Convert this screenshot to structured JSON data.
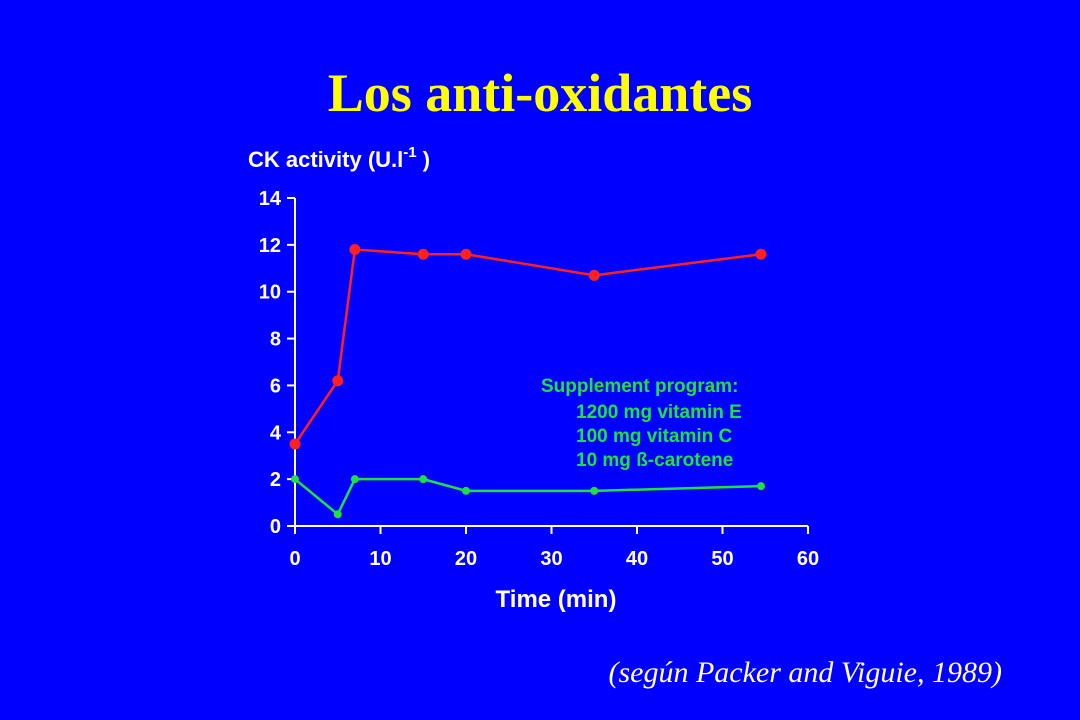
{
  "slide": {
    "title": "Los anti-oxidantes",
    "citation": "(según Packer and Viguie, 1989)",
    "colors": {
      "background": "#0000ff",
      "title": "#ffff00",
      "axis": "#ffffff",
      "series_control": "#ff2020",
      "series_supplement": "#20e040"
    }
  },
  "chart_data": {
    "type": "line",
    "title": "",
    "ylabel": "CK activity (U.l-1)",
    "ylabel_base": "CK activity (U.l",
    "ylabel_sup": "-1",
    "ylabel_end": " )",
    "xlabel": "Time (min)",
    "xlim": [
      0,
      60
    ],
    "ylim": [
      0,
      14
    ],
    "xticks": [
      0,
      10,
      20,
      30,
      40,
      50,
      60
    ],
    "yticks": [
      0,
      2,
      4,
      6,
      8,
      10,
      12,
      14
    ],
    "grid": false,
    "series": [
      {
        "color": "#ff2020",
        "x": [
          0,
          5,
          7,
          15,
          20,
          35,
          54.5
        ],
        "y": [
          3.5,
          6.2,
          11.8,
          11.6,
          11.6,
          10.7,
          11.6
        ]
      },
      {
        "color": "#20e040",
        "x": [
          0,
          5,
          7,
          15,
          20,
          35,
          54.5
        ],
        "y": [
          2.0,
          0.5,
          2.0,
          2.0,
          1.5,
          1.5,
          1.7
        ]
      }
    ],
    "annotation": {
      "heading": "Supplement program:",
      "lines": [
        "1200 mg vitamin E",
        "100 mg vitamin C",
        "10 mg ß-carotene"
      ],
      "color": "#20e040"
    }
  }
}
